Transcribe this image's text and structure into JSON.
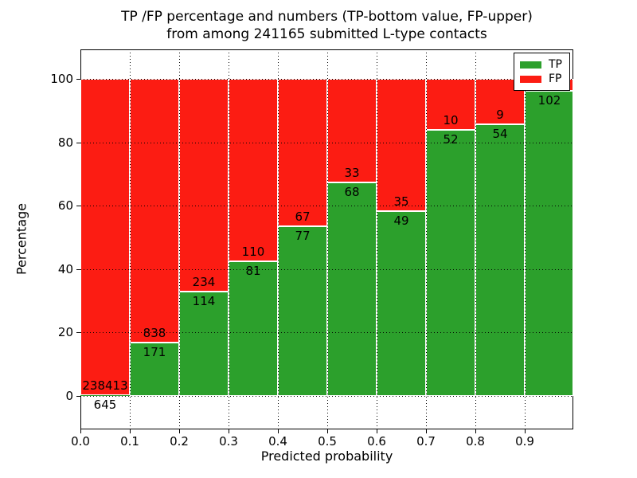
{
  "chart_data": {
    "type": "bar",
    "stacked": true,
    "title_line1": "TP /FP percentage and numbers (TP-bottom value, FP-upper)",
    "title_line2": "from among 241165 submitted L-type contacts",
    "xlabel": "Predicted probability",
    "ylabel": "Percentage",
    "total_submitted": 241165,
    "categories": [
      "0.0-0.1",
      "0.1-0.2",
      "0.2-0.3",
      "0.3-0.4",
      "0.4-0.5",
      "0.5-0.6",
      "0.6-0.7",
      "0.7-0.8",
      "0.8-0.9",
      "0.9-1.0"
    ],
    "x_tick_labels": [
      "0.0",
      "0.1",
      "0.2",
      "0.3",
      "0.4",
      "0.5",
      "0.6",
      "0.7",
      "0.8",
      "0.9"
    ],
    "y_tick_values": [
      0,
      20,
      40,
      60,
      80,
      100
    ],
    "xlim": [
      0.0,
      1.0
    ],
    "ylim_display": [
      -10.5,
      109.5
    ],
    "grid": "dotted",
    "series": [
      {
        "name": "TP",
        "color": "#2ca02c",
        "values": [
          645,
          171,
          114,
          81,
          77,
          68,
          49,
          52,
          54,
          102
        ]
      },
      {
        "name": "FP",
        "color": "#fc1c13",
        "values": [
          238413,
          838,
          234,
          110,
          67,
          33,
          35,
          10,
          9,
          null
        ]
      }
    ],
    "fp_label_visible": [
      true,
      true,
      true,
      true,
      true,
      true,
      true,
      true,
      true,
      false
    ],
    "tp_percent": [
      0.3,
      16.9,
      32.8,
      42.4,
      53.5,
      67.3,
      58.3,
      83.9,
      85.7,
      96.2
    ],
    "legend": {
      "position": "upper right",
      "entries": [
        {
          "label": "TP",
          "color": "#2ca02c"
        },
        {
          "label": "FP",
          "color": "#fc1c13"
        }
      ]
    }
  }
}
